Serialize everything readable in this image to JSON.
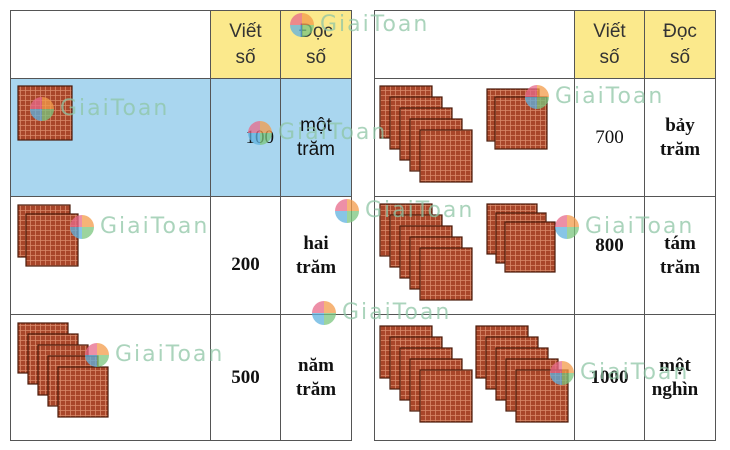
{
  "watermark": "GiaiToan",
  "left": {
    "header": [
      "Viết số",
      "Đọc số"
    ],
    "rows": [
      [
        "100",
        "một trăm"
      ],
      [
        "200",
        "hai trăm"
      ],
      [
        "500",
        "năm trăm"
      ]
    ]
  },
  "right": {
    "header": [
      "Viết số",
      "Đọc số"
    ],
    "rows": [
      [
        "700",
        "bảy trăm"
      ],
      [
        "800",
        "tám trăm"
      ],
      [
        "1000",
        "một nghìn"
      ]
    ]
  }
}
